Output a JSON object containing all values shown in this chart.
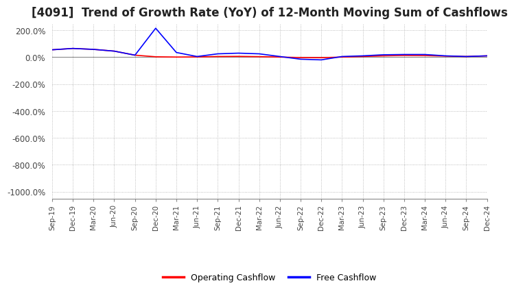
{
  "title": "[4091]  Trend of Growth Rate (YoY) of 12-Month Moving Sum of Cashflows",
  "title_fontsize": 12,
  "ylim": [
    -1050,
    250
  ],
  "yticks": [
    200,
    0,
    -200,
    -400,
    -600,
    -800,
    -1000
  ],
  "ytick_labels": [
    "200.0%",
    "0.0%",
    "-200.0%",
    "-400.0%",
    "-600.0%",
    "-800.0%",
    "-1000.0%"
  ],
  "background_color": "#ffffff",
  "grid_color": "#aaaaaa",
  "legend_labels": [
    "Operating Cashflow",
    "Free Cashflow"
  ],
  "legend_colors": [
    "red",
    "blue"
  ],
  "x_labels": [
    "Sep-19",
    "Dec-19",
    "Mar-20",
    "Jun-20",
    "Sep-20",
    "Dec-20",
    "Mar-21",
    "Jun-21",
    "Sep-21",
    "Dec-21",
    "Mar-22",
    "Jun-22",
    "Sep-22",
    "Dec-22",
    "Mar-23",
    "Jun-23",
    "Sep-23",
    "Dec-23",
    "Mar-24",
    "Jun-24",
    "Sep-24",
    "Dec-24"
  ],
  "operating_cashflow": [
    55,
    65,
    58,
    45,
    15,
    3,
    1,
    2,
    5,
    6,
    4,
    1,
    -3,
    -4,
    1,
    5,
    10,
    13,
    12,
    8,
    5,
    10
  ],
  "free_cashflow": [
    55,
    65,
    58,
    45,
    15,
    215,
    35,
    5,
    25,
    30,
    25,
    5,
    -15,
    -20,
    5,
    10,
    18,
    20,
    20,
    10,
    5,
    10
  ]
}
